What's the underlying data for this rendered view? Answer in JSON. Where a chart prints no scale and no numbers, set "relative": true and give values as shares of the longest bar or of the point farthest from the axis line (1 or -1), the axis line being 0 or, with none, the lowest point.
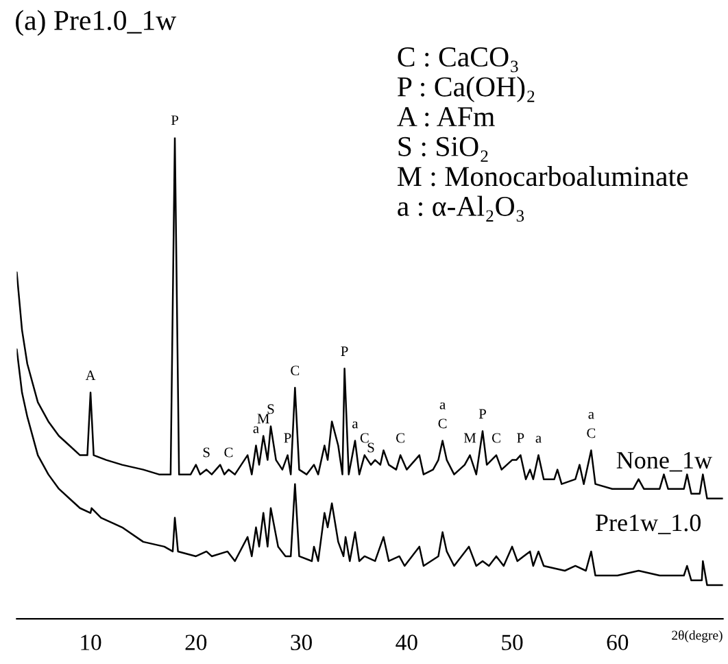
{
  "chart_data": {
    "type": "line",
    "title": "(a) Pre1.0_1w",
    "xlabel": "2θ(degre)",
    "relative": true,
    "xlim": [
      3,
      70
    ],
    "xticks": [
      10,
      20,
      30,
      40,
      50,
      60
    ],
    "grid": false,
    "series": [
      {
        "name": "None_1w",
        "color": "#000000",
        "x": [
          3.0,
          3.5,
          4.0,
          5.0,
          6.0,
          7.0,
          8.0,
          9.0,
          9.7,
          10.0,
          10.3,
          11.5,
          13.0,
          15.0,
          16.5,
          17.6,
          18.0,
          18.4,
          19.5,
          20.0,
          20.4,
          21.0,
          21.5,
          22.3,
          22.7,
          23.1,
          23.7,
          24.9,
          25.3,
          25.7,
          26.0,
          26.4,
          26.8,
          27.1,
          27.6,
          28.2,
          28.7,
          29.0,
          29.4,
          29.8,
          30.5,
          31.2,
          31.6,
          32.2,
          32.5,
          32.9,
          33.5,
          33.9,
          34.1,
          34.5,
          35.1,
          35.5,
          36.0,
          36.6,
          37.0,
          37.5,
          37.8,
          38.3,
          39.0,
          39.4,
          40.0,
          41.2,
          41.6,
          42.5,
          43.0,
          43.4,
          43.8,
          44.5,
          45.5,
          46.0,
          46.6,
          47.2,
          47.6,
          48.5,
          49.0,
          50.0,
          50.4,
          50.8,
          51.3,
          51.7,
          52.0,
          52.5,
          53.0,
          54.0,
          54.3,
          54.7,
          56.0,
          56.4,
          56.8,
          57.5,
          57.9,
          59.5,
          61.5,
          62.0,
          62.5,
          64.0,
          64.4,
          64.8,
          66.3,
          66.6,
          67.0,
          67.8,
          68.1,
          68.5,
          70.0
        ],
        "values": [
          0.72,
          0.6,
          0.53,
          0.45,
          0.41,
          0.38,
          0.36,
          0.34,
          0.34,
          0.47,
          0.34,
          0.33,
          0.32,
          0.31,
          0.3,
          0.3,
          1.0,
          0.3,
          0.3,
          0.32,
          0.3,
          0.31,
          0.3,
          0.32,
          0.3,
          0.31,
          0.3,
          0.34,
          0.3,
          0.36,
          0.32,
          0.38,
          0.33,
          0.4,
          0.33,
          0.31,
          0.34,
          0.3,
          0.48,
          0.31,
          0.3,
          0.32,
          0.3,
          0.36,
          0.33,
          0.41,
          0.36,
          0.3,
          0.52,
          0.3,
          0.37,
          0.3,
          0.34,
          0.32,
          0.33,
          0.32,
          0.35,
          0.32,
          0.31,
          0.34,
          0.31,
          0.34,
          0.3,
          0.31,
          0.33,
          0.37,
          0.33,
          0.3,
          0.32,
          0.34,
          0.3,
          0.39,
          0.32,
          0.34,
          0.31,
          0.33,
          0.33,
          0.34,
          0.29,
          0.31,
          0.29,
          0.34,
          0.29,
          0.29,
          0.31,
          0.28,
          0.29,
          0.32,
          0.28,
          0.35,
          0.28,
          0.27,
          0.27,
          0.29,
          0.27,
          0.27,
          0.3,
          0.27,
          0.27,
          0.3,
          0.26,
          0.26,
          0.3,
          0.25,
          0.25
        ]
      },
      {
        "name": "Pre1w_1.0",
        "color": "#000000",
        "x": [
          3.0,
          3.5,
          4.0,
          5.0,
          6.0,
          7.0,
          8.0,
          9.0,
          10.0,
          10.1,
          11.0,
          13.0,
          15.0,
          17.0,
          17.8,
          18.0,
          18.3,
          20.0,
          21.0,
          21.5,
          23.0,
          23.7,
          24.9,
          25.3,
          25.7,
          26.0,
          26.4,
          26.8,
          27.1,
          27.8,
          28.5,
          29.0,
          29.4,
          29.8,
          31.0,
          31.2,
          31.6,
          32.2,
          32.5,
          32.9,
          33.5,
          34.0,
          34.2,
          34.6,
          35.1,
          35.5,
          36.0,
          37.0,
          37.8,
          38.3,
          39.3,
          39.8,
          41.2,
          41.6,
          43.0,
          43.4,
          43.8,
          44.5,
          45.9,
          46.6,
          47.2,
          47.8,
          48.5,
          49.2,
          50.0,
          50.5,
          51.7,
          52.0,
          52.5,
          53.0,
          55.0,
          56.0,
          57.0,
          57.5,
          57.9,
          60.0,
          62.0,
          64.0,
          66.3,
          66.6,
          67.0,
          68.0,
          68.1,
          68.5,
          70.0
        ],
        "values": [
          0.56,
          0.47,
          0.42,
          0.34,
          0.3,
          0.27,
          0.25,
          0.23,
          0.22,
          0.23,
          0.21,
          0.19,
          0.16,
          0.15,
          0.14,
          0.21,
          0.14,
          0.13,
          0.14,
          0.13,
          0.14,
          0.12,
          0.17,
          0.13,
          0.19,
          0.15,
          0.22,
          0.15,
          0.23,
          0.15,
          0.13,
          0.13,
          0.28,
          0.13,
          0.12,
          0.15,
          0.12,
          0.22,
          0.19,
          0.24,
          0.16,
          0.13,
          0.17,
          0.12,
          0.18,
          0.12,
          0.13,
          0.12,
          0.17,
          0.12,
          0.13,
          0.11,
          0.15,
          0.11,
          0.13,
          0.18,
          0.14,
          0.11,
          0.15,
          0.11,
          0.12,
          0.11,
          0.13,
          0.11,
          0.15,
          0.12,
          0.14,
          0.11,
          0.14,
          0.11,
          0.1,
          0.11,
          0.1,
          0.14,
          0.09,
          0.09,
          0.1,
          0.09,
          0.09,
          0.11,
          0.08,
          0.08,
          0.12,
          0.07,
          0.07
        ]
      }
    ],
    "annotations": [
      "C : CaCO₃",
      "P : Ca(OH)₂",
      "A : AFm",
      "S : SiO₂",
      "M : Monocarboaluminate",
      "a : α-Al₂O₃",
      {
        "text": "A",
        "x": 10.0,
        "y": 0.47
      },
      {
        "text": "P",
        "x": 18.0,
        "y": 1.0
      },
      {
        "text": "S",
        "x": 21.0,
        "y": 0.31
      },
      {
        "text": "C",
        "x": 23.1,
        "y": 0.31
      },
      {
        "text": "a",
        "x": 25.7,
        "y": 0.36
      },
      {
        "text": "M",
        "x": 26.4,
        "y": 0.38
      },
      {
        "text": "S",
        "x": 27.1,
        "y": 0.4
      },
      {
        "text": "P",
        "x": 28.7,
        "y": 0.34
      },
      {
        "text": "C",
        "x": 29.4,
        "y": 0.48
      },
      {
        "text": "P",
        "x": 34.1,
        "y": 0.52
      },
      {
        "text": "a",
        "x": 35.1,
        "y": 0.37
      },
      {
        "text": "C",
        "x": 36.0,
        "y": 0.34
      },
      {
        "text": "S",
        "x": 36.6,
        "y": 0.32
      },
      {
        "text": "C",
        "x": 39.4,
        "y": 0.34
      },
      {
        "text": "C",
        "x": 43.4,
        "y": 0.37
      },
      {
        "text": "a",
        "x": 43.4,
        "y": 0.37
      },
      {
        "text": "M",
        "x": 46.0,
        "y": 0.34
      },
      {
        "text": "P",
        "x": 47.2,
        "y": 0.39
      },
      {
        "text": "C",
        "x": 48.5,
        "y": 0.34
      },
      {
        "text": "P",
        "x": 50.8,
        "y": 0.34
      },
      {
        "text": "a",
        "x": 52.5,
        "y": 0.34
      },
      {
        "text": "C",
        "x": 57.5,
        "y": 0.35
      },
      {
        "text": "a",
        "x": 57.5,
        "y": 0.35
      }
    ]
  }
}
